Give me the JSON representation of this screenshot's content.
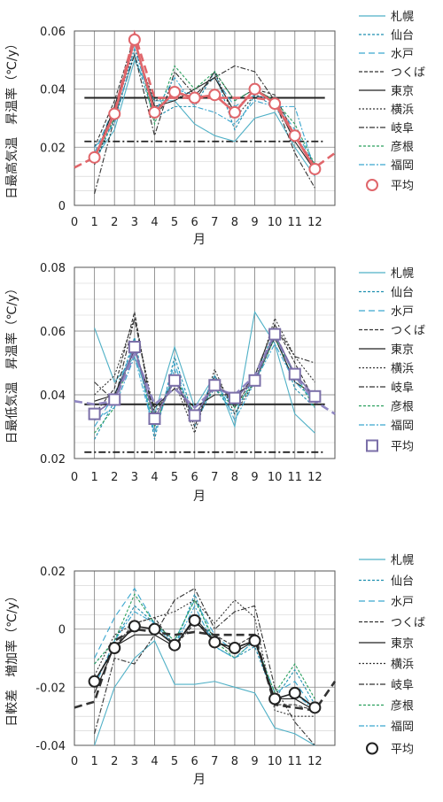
{
  "legend_names": [
    "札幌",
    "仙台",
    "水戸",
    "つくば",
    "東京",
    "横浜",
    "岐阜",
    "彦根",
    "福岡"
  ],
  "average_label": "平均",
  "chart_data": [
    {
      "type": "line",
      "ylabel": "日最高気温　昇温率（℃/y）",
      "xlabel": "月",
      "x": [
        1,
        2,
        3,
        4,
        5,
        6,
        7,
        8,
        9,
        10,
        11,
        12
      ],
      "xlim": [
        0,
        13
      ],
      "xticks": [
        "0",
        "1",
        "2",
        "3",
        "4",
        "5",
        "6",
        "7",
        "8",
        "9",
        "10",
        "11",
        "12"
      ],
      "ylim": [
        0,
        0.06
      ],
      "yticks": [
        "0",
        "0.02",
        "0.04",
        "0.06"
      ],
      "series": [
        {
          "name": "札幌",
          "values": [
            0.016,
            0.026,
            0.05,
            0.036,
            0.036,
            0.028,
            0.024,
            0.022,
            0.03,
            0.032,
            0.02,
            0.01
          ],
          "color": "#4fb0c6",
          "dash": ""
        },
        {
          "name": "仙台",
          "values": [
            0.014,
            0.03,
            0.052,
            0.03,
            0.034,
            0.034,
            0.046,
            0.026,
            0.038,
            0.034,
            0.024,
            0.012
          ],
          "color": "#1f8fb0",
          "dash": "3,2"
        },
        {
          "name": "水戸",
          "values": [
            0.018,
            0.034,
            0.056,
            0.032,
            0.04,
            0.038,
            0.044,
            0.034,
            0.038,
            0.036,
            0.026,
            0.014
          ],
          "color": "#3aa6cf",
          "dash": "7,4"
        },
        {
          "name": "つくば",
          "values": [
            0.02,
            0.036,
            0.058,
            0.03,
            0.04,
            0.036,
            0.046,
            0.036,
            0.04,
            0.038,
            0.024,
            0.012
          ],
          "color": "#333333",
          "dash": "4,2"
        },
        {
          "name": "東京",
          "values": [
            0.016,
            0.034,
            0.056,
            0.034,
            0.036,
            0.04,
            0.044,
            0.032,
            0.04,
            0.036,
            0.022,
            0.012
          ],
          "color": "#222222",
          "dash": ""
        },
        {
          "name": "横浜",
          "values": [
            0.014,
            0.032,
            0.054,
            0.036,
            0.038,
            0.036,
            0.046,
            0.03,
            0.038,
            0.036,
            0.024,
            0.014
          ],
          "color": "#333333",
          "dash": "2,2"
        },
        {
          "name": "岐阜",
          "values": [
            0.004,
            0.03,
            0.052,
            0.024,
            0.046,
            0.038,
            0.044,
            0.048,
            0.046,
            0.036,
            0.018,
            0.006
          ],
          "color": "#333333",
          "dash": "6,2,2,2"
        },
        {
          "name": "彦根",
          "values": [
            0.016,
            0.03,
            0.058,
            0.028,
            0.048,
            0.04,
            0.046,
            0.036,
            0.04,
            0.036,
            0.028,
            0.014
          ],
          "color": "#2aa05e",
          "dash": "3,2"
        },
        {
          "name": "福岡",
          "values": [
            0.02,
            0.028,
            0.054,
            0.032,
            0.044,
            0.034,
            0.032,
            0.028,
            0.036,
            0.034,
            0.034,
            0.012
          ],
          "color": "#3aa6cf",
          "dash": "6,2,2,2"
        }
      ],
      "average": {
        "name": "平均",
        "values": [
          0.0165,
          0.0315,
          0.057,
          0.032,
          0.039,
          0.037,
          0.038,
          0.032,
          0.04,
          0.035,
          0.024,
          0.0125
        ],
        "color": "#e0666b"
      },
      "smooth": [
        [
          0,
          0.013
        ],
        [
          1,
          0.0165
        ],
        [
          2,
          0.032
        ],
        [
          3,
          0.059
        ],
        [
          4,
          0.037
        ],
        [
          5,
          0.037
        ],
        [
          6,
          0.037
        ],
        [
          7,
          0.037
        ],
        [
          8,
          0.037
        ],
        [
          9,
          0.037
        ],
        [
          10,
          0.036
        ],
        [
          11,
          0.024
        ],
        [
          12,
          0.013
        ],
        [
          13,
          0.018
        ]
      ],
      "hlines": [
        {
          "y": 0.037,
          "style": "solid"
        },
        {
          "y": 0.022,
          "style": "dashdot"
        }
      ]
    },
    {
      "type": "line",
      "ylabel": "日最低気温　昇温率（℃/y）",
      "xlabel": "月",
      "x": [
        1,
        2,
        3,
        4,
        5,
        6,
        7,
        8,
        9,
        10,
        11,
        12
      ],
      "xlim": [
        0,
        13
      ],
      "xticks": [
        "0",
        "1",
        "2",
        "3",
        "4",
        "5",
        "6",
        "7",
        "8",
        "9",
        "10",
        "11",
        "12"
      ],
      "ylim": [
        0.02,
        0.08
      ],
      "yticks": [
        "0.02",
        "0.04",
        "0.06",
        "0.08"
      ],
      "series": [
        {
          "name": "札幌",
          "values": [
            0.061,
            0.044,
            0.052,
            0.034,
            0.055,
            0.036,
            0.046,
            0.03,
            0.066,
            0.056,
            0.034,
            0.028
          ],
          "color": "#4fb0c6",
          "dash": ""
        },
        {
          "name": "仙台",
          "values": [
            0.026,
            0.038,
            0.058,
            0.026,
            0.052,
            0.032,
            0.042,
            0.034,
            0.046,
            0.06,
            0.042,
            0.036
          ],
          "color": "#1f8fb0",
          "dash": "3,2"
        },
        {
          "name": "水戸",
          "values": [
            0.03,
            0.04,
            0.056,
            0.028,
            0.05,
            0.03,
            0.044,
            0.036,
            0.044,
            0.058,
            0.046,
            0.038
          ],
          "color": "#3aa6cf",
          "dash": "7,4"
        },
        {
          "name": "つくば",
          "values": [
            0.034,
            0.042,
            0.066,
            0.03,
            0.046,
            0.03,
            0.046,
            0.036,
            0.046,
            0.062,
            0.05,
            0.038
          ],
          "color": "#333333",
          "dash": "4,2"
        },
        {
          "name": "東京",
          "values": [
            0.038,
            0.04,
            0.054,
            0.036,
            0.042,
            0.036,
            0.04,
            0.04,
            0.044,
            0.058,
            0.044,
            0.04
          ],
          "color": "#222222",
          "dash": ""
        },
        {
          "name": "横浜",
          "values": [
            0.04,
            0.046,
            0.064,
            0.034,
            0.044,
            0.028,
            0.048,
            0.034,
            0.044,
            0.064,
            0.052,
            0.044
          ],
          "color": "#333333",
          "dash": "2,2"
        },
        {
          "name": "岐阜",
          "values": [
            0.044,
            0.038,
            0.064,
            0.032,
            0.046,
            0.032,
            0.044,
            0.038,
            0.046,
            0.062,
            0.052,
            0.05
          ],
          "color": "#333333",
          "dash": "6,2,2,2"
        },
        {
          "name": "彦根",
          "values": [
            0.028,
            0.036,
            0.056,
            0.03,
            0.046,
            0.034,
            0.042,
            0.036,
            0.044,
            0.058,
            0.046,
            0.036
          ],
          "color": "#2aa05e",
          "dash": "3,2"
        },
        {
          "name": "福岡",
          "values": [
            0.032,
            0.036,
            0.052,
            0.028,
            0.048,
            0.032,
            0.046,
            0.032,
            0.044,
            0.056,
            0.044,
            0.038
          ],
          "color": "#3aa6cf",
          "dash": "6,2,2,2"
        }
      ],
      "average": {
        "name": "平均",
        "values": [
          0.034,
          0.0385,
          0.055,
          0.0325,
          0.0445,
          0.0335,
          0.043,
          0.039,
          0.0445,
          0.059,
          0.0465,
          0.0395
        ],
        "color": "#7b6fa8"
      },
      "smooth": [
        [
          0,
          0.038
        ],
        [
          1,
          0.037
        ],
        [
          2,
          0.038
        ],
        [
          3,
          0.053
        ],
        [
          4,
          0.037
        ],
        [
          5,
          0.042
        ],
        [
          6,
          0.036
        ],
        [
          7,
          0.042
        ],
        [
          8,
          0.04
        ],
        [
          9,
          0.046
        ],
        [
          10,
          0.059
        ],
        [
          11,
          0.046
        ],
        [
          12,
          0.038
        ],
        [
          13,
          0.034
        ]
      ],
      "hlines": [
        {
          "y": 0.037,
          "style": "solid"
        },
        {
          "y": 0.022,
          "style": "dashdot"
        }
      ]
    },
    {
      "type": "line",
      "ylabel": "日較差　増加率（℃/y）",
      "xlabel": "月",
      "x": [
        1,
        2,
        3,
        4,
        5,
        6,
        7,
        8,
        9,
        10,
        11,
        12
      ],
      "xlim": [
        0,
        13
      ],
      "xticks": [
        "0",
        "1",
        "2",
        "3",
        "4",
        "5",
        "6",
        "7",
        "8",
        "9",
        "10",
        "11",
        "12"
      ],
      "ylim": [
        -0.04,
        0.02
      ],
      "yticks": [
        "-0.04",
        "-0.02",
        "0",
        "0.02"
      ],
      "series": [
        {
          "name": "札幌",
          "values": [
            -0.04,
            -0.02,
            -0.01,
            -0.004,
            -0.019,
            -0.019,
            -0.018,
            -0.02,
            -0.022,
            -0.034,
            -0.036,
            -0.04
          ],
          "color": "#4fb0c6",
          "dash": ""
        },
        {
          "name": "仙台",
          "values": [
            -0.012,
            -0.004,
            0.008,
            0.002,
            -0.006,
            0.012,
            -0.006,
            -0.01,
            -0.006,
            -0.024,
            -0.014,
            -0.026
          ],
          "color": "#1f8fb0",
          "dash": "3,2"
        },
        {
          "name": "水戸",
          "values": [
            -0.01,
            0.004,
            0.014,
            0.002,
            -0.004,
            0.01,
            -0.002,
            -0.008,
            -0.004,
            -0.022,
            -0.018,
            -0.028
          ],
          "color": "#3aa6cf",
          "dash": "7,4"
        },
        {
          "name": "つくば",
          "values": [
            -0.018,
            -0.006,
            0.002,
            0.004,
            -0.006,
            0.002,
            -0.002,
            -0.006,
            -0.002,
            -0.026,
            -0.026,
            -0.028
          ],
          "color": "#333333",
          "dash": "4,2"
        },
        {
          "name": "東京",
          "values": [
            -0.022,
            -0.006,
            -0.002,
            -0.002,
            -0.006,
            0.004,
            -0.004,
            -0.008,
            -0.004,
            -0.024,
            -0.024,
            -0.028
          ],
          "color": "#222222",
          "dash": ""
        },
        {
          "name": "横浜",
          "values": [
            -0.016,
            -0.002,
            0.002,
            0.004,
            0.006,
            0.01,
            0.002,
            0.01,
            0.004,
            -0.028,
            -0.03,
            -0.03
          ],
          "color": "#333333",
          "dash": "2,2"
        },
        {
          "name": "岐阜",
          "values": [
            -0.036,
            -0.01,
            -0.012,
            -0.002,
            0.01,
            0.014,
            0.0,
            0.006,
            0.008,
            -0.02,
            -0.032,
            -0.04
          ],
          "color": "#333333",
          "dash": "6,2,2,2"
        },
        {
          "name": "彦根",
          "values": [
            -0.012,
            -0.004,
            0.012,
            0.002,
            -0.004,
            0.01,
            -0.004,
            -0.01,
            -0.004,
            -0.022,
            -0.012,
            -0.024
          ],
          "color": "#2aa05e",
          "dash": "3,2"
        },
        {
          "name": "福岡",
          "values": [
            -0.02,
            -0.004,
            0.006,
            0.002,
            -0.006,
            0.008,
            -0.006,
            -0.01,
            -0.004,
            -0.024,
            -0.022,
            -0.028
          ],
          "color": "#3aa6cf",
          "dash": "6,2,2,2"
        }
      ],
      "average": {
        "name": "平均",
        "values": [
          -0.018,
          -0.0065,
          0.001,
          0.0,
          -0.0055,
          0.003,
          -0.0045,
          -0.0065,
          -0.004,
          -0.024,
          -0.022,
          -0.027
        ],
        "color": "#222222"
      },
      "smooth": [
        [
          0,
          -0.027
        ],
        [
          1,
          -0.025
        ],
        [
          2,
          -0.004
        ],
        [
          3,
          0.0
        ],
        [
          4,
          -0.001
        ],
        [
          5,
          -0.002
        ],
        [
          6,
          -0.001
        ],
        [
          7,
          -0.002
        ],
        [
          8,
          -0.002
        ],
        [
          9,
          -0.002
        ],
        [
          10,
          -0.026
        ],
        [
          11,
          -0.027
        ],
        [
          12,
          -0.028
        ],
        [
          13,
          -0.018
        ]
      ],
      "hlines": []
    }
  ]
}
